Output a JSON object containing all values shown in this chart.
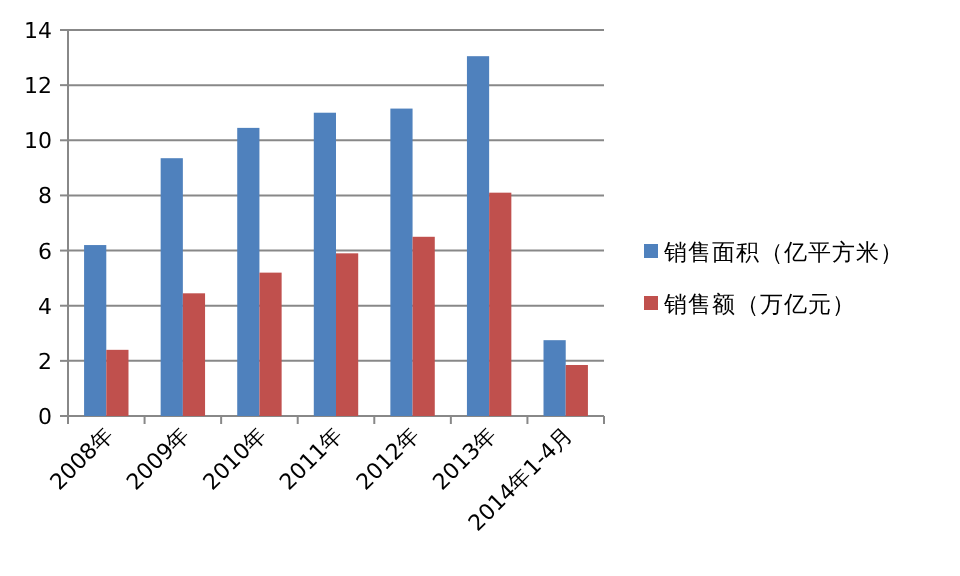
{
  "chart_data": {
    "type": "bar",
    "categories": [
      "2008年",
      "2009年",
      "2010年",
      "2011年",
      "2012年",
      "2013年",
      "2014年1-4月"
    ],
    "series": [
      {
        "name": "销售面积（亿平方米）",
        "color": "#4f81bd",
        "values": [
          6.2,
          9.35,
          10.45,
          11.0,
          11.15,
          13.05,
          2.75
        ]
      },
      {
        "name": "销售额（万亿元）",
        "color": "#c0504d",
        "values": [
          2.4,
          4.45,
          5.2,
          5.9,
          6.5,
          8.1,
          1.85
        ]
      }
    ],
    "ylim": [
      0,
      14
    ],
    "yticks": [
      0,
      2,
      4,
      6,
      8,
      10,
      12,
      14
    ],
    "grid": "y",
    "legend": "right"
  }
}
